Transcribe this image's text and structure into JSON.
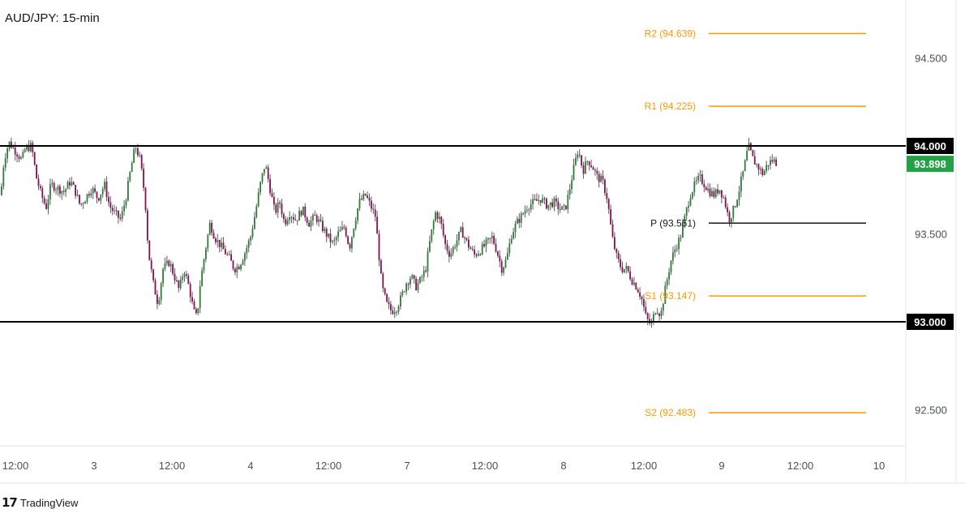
{
  "colors": {
    "up": "#2e7d32",
    "down": "#880e4f",
    "wick": "#5d606b",
    "pivot_orange": "#ff9800",
    "pivot_black": "#131722",
    "sr_line": "#000000",
    "price_tag": "#26a046",
    "axis_text": "#4b4f5a",
    "border": "#e0e3eb"
  },
  "footer": {
    "logo_icon": "tradingview-logo-icon",
    "brand": "TradingView"
  },
  "chart_data": {
    "type": "candlestick",
    "title": "AUD/JPY: 15-min",
    "ylim": [
      92.2,
      94.8
    ],
    "y_ticks": [
      "94.500",
      "93.500",
      "92.500"
    ],
    "x_ticks": [
      "12:00",
      "3",
      "12:00",
      "4",
      "12:00",
      "7",
      "12:00",
      "8",
      "12:00",
      "9",
      "12:00",
      "10"
    ],
    "horizontal_levels": [
      {
        "label": "94.000",
        "value": 94.0
      },
      {
        "label": "93.000",
        "value": 93.0
      }
    ],
    "pivots": [
      {
        "label": "R2 (94.639)",
        "value": 94.639
      },
      {
        "label": "R1 (94.225)",
        "value": 94.225
      },
      {
        "label": "P (93.561)",
        "value": 93.561
      },
      {
        "label": "S1 (93.147)",
        "value": 93.147
      },
      {
        "label": "S2 (92.483)",
        "value": 92.483
      }
    ],
    "last_price": "93.898",
    "price_path": [
      [
        0,
        93.72
      ],
      [
        4,
        93.92
      ],
      [
        10,
        94.02
      ],
      [
        20,
        93.96
      ],
      [
        26,
        93.92
      ],
      [
        30,
        93.98
      ],
      [
        38,
        94.0
      ],
      [
        44,
        93.82
      ],
      [
        50,
        93.72
      ],
      [
        56,
        93.65
      ],
      [
        62,
        93.78
      ],
      [
        70,
        93.76
      ],
      [
        78,
        93.74
      ],
      [
        86,
        93.8
      ],
      [
        92,
        93.74
      ],
      [
        98,
        93.66
      ],
      [
        104,
        93.7
      ],
      [
        112,
        93.76
      ],
      [
        120,
        93.7
      ],
      [
        128,
        93.78
      ],
      [
        134,
        93.66
      ],
      [
        140,
        93.62
      ],
      [
        148,
        93.58
      ],
      [
        155,
        93.72
      ],
      [
        160,
        93.86
      ],
      [
        166,
        94.0
      ],
      [
        172,
        93.92
      ],
      [
        178,
        93.7
      ],
      [
        182,
        93.4
      ],
      [
        188,
        93.22
      ],
      [
        194,
        93.1
      ],
      [
        200,
        93.3
      ],
      [
        208,
        93.34
      ],
      [
        214,
        93.26
      ],
      [
        220,
        93.18
      ],
      [
        226,
        93.3
      ],
      [
        232,
        93.2
      ],
      [
        238,
        93.06
      ],
      [
        242,
        93.02
      ],
      [
        246,
        93.22
      ],
      [
        252,
        93.4
      ],
      [
        258,
        93.56
      ],
      [
        264,
        93.48
      ],
      [
        270,
        93.44
      ],
      [
        276,
        93.4
      ],
      [
        282,
        93.36
      ],
      [
        288,
        93.3
      ],
      [
        294,
        93.32
      ],
      [
        300,
        93.38
      ],
      [
        308,
        93.48
      ],
      [
        314,
        93.62
      ],
      [
        320,
        93.78
      ],
      [
        326,
        93.9
      ],
      [
        332,
        93.76
      ],
      [
        338,
        93.62
      ],
      [
        344,
        93.68
      ],
      [
        350,
        93.56
      ],
      [
        356,
        93.62
      ],
      [
        364,
        93.58
      ],
      [
        372,
        93.64
      ],
      [
        380,
        93.56
      ],
      [
        388,
        93.6
      ],
      [
        396,
        93.54
      ],
      [
        404,
        93.48
      ],
      [
        410,
        93.44
      ],
      [
        416,
        93.5
      ],
      [
        424,
        93.54
      ],
      [
        430,
        93.42
      ],
      [
        436,
        93.56
      ],
      [
        442,
        93.68
      ],
      [
        450,
        93.72
      ],
      [
        456,
        93.66
      ],
      [
        462,
        93.6
      ],
      [
        466,
        93.4
      ],
      [
        470,
        93.2
      ],
      [
        476,
        93.1
      ],
      [
        482,
        93.06
      ],
      [
        488,
        93.08
      ],
      [
        494,
        93.14
      ],
      [
        500,
        93.22
      ],
      [
        506,
        93.26
      ],
      [
        512,
        93.2
      ],
      [
        518,
        93.24
      ],
      [
        524,
        93.3
      ],
      [
        530,
        93.48
      ],
      [
        536,
        93.62
      ],
      [
        542,
        93.58
      ],
      [
        548,
        93.44
      ],
      [
        554,
        93.38
      ],
      [
        560,
        93.44
      ],
      [
        568,
        93.52
      ],
      [
        576,
        93.44
      ],
      [
        584,
        93.38
      ],
      [
        590,
        93.4
      ],
      [
        598,
        93.44
      ],
      [
        606,
        93.48
      ],
      [
        612,
        93.4
      ],
      [
        618,
        93.3
      ],
      [
        624,
        93.36
      ],
      [
        630,
        93.5
      ],
      [
        636,
        93.56
      ],
      [
        642,
        93.6
      ],
      [
        650,
        93.66
      ],
      [
        658,
        93.68
      ],
      [
        666,
        93.7
      ],
      [
        674,
        93.66
      ],
      [
        682,
        93.68
      ],
      [
        690,
        93.64
      ],
      [
        696,
        93.64
      ],
      [
        700,
        93.72
      ],
      [
        706,
        93.86
      ],
      [
        712,
        93.98
      ],
      [
        718,
        93.86
      ],
      [
        724,
        93.92
      ],
      [
        730,
        93.88
      ],
      [
        736,
        93.82
      ],
      [
        742,
        93.8
      ],
      [
        748,
        93.7
      ],
      [
        754,
        93.48
      ],
      [
        760,
        93.36
      ],
      [
        766,
        93.3
      ],
      [
        772,
        93.3
      ],
      [
        778,
        93.24
      ],
      [
        784,
        93.2
      ],
      [
        790,
        93.14
      ],
      [
        796,
        93.02
      ],
      [
        802,
        92.98
      ],
      [
        808,
        93.08
      ],
      [
        814,
        93.04
      ],
      [
        820,
        93.2
      ],
      [
        826,
        93.34
      ],
      [
        832,
        93.42
      ],
      [
        838,
        93.48
      ],
      [
        844,
        93.6
      ],
      [
        850,
        93.72
      ],
      [
        856,
        93.78
      ],
      [
        862,
        93.82
      ],
      [
        868,
        93.78
      ],
      [
        874,
        93.74
      ],
      [
        880,
        93.72
      ],
      [
        886,
        93.76
      ],
      [
        892,
        93.7
      ],
      [
        898,
        93.58
      ],
      [
        904,
        93.64
      ],
      [
        910,
        93.74
      ],
      [
        916,
        93.86
      ],
      [
        922,
        94.0
      ],
      [
        928,
        93.92
      ],
      [
        934,
        93.88
      ],
      [
        940,
        93.84
      ],
      [
        946,
        93.9
      ],
      [
        952,
        93.92
      ],
      [
        958,
        93.898
      ]
    ]
  }
}
